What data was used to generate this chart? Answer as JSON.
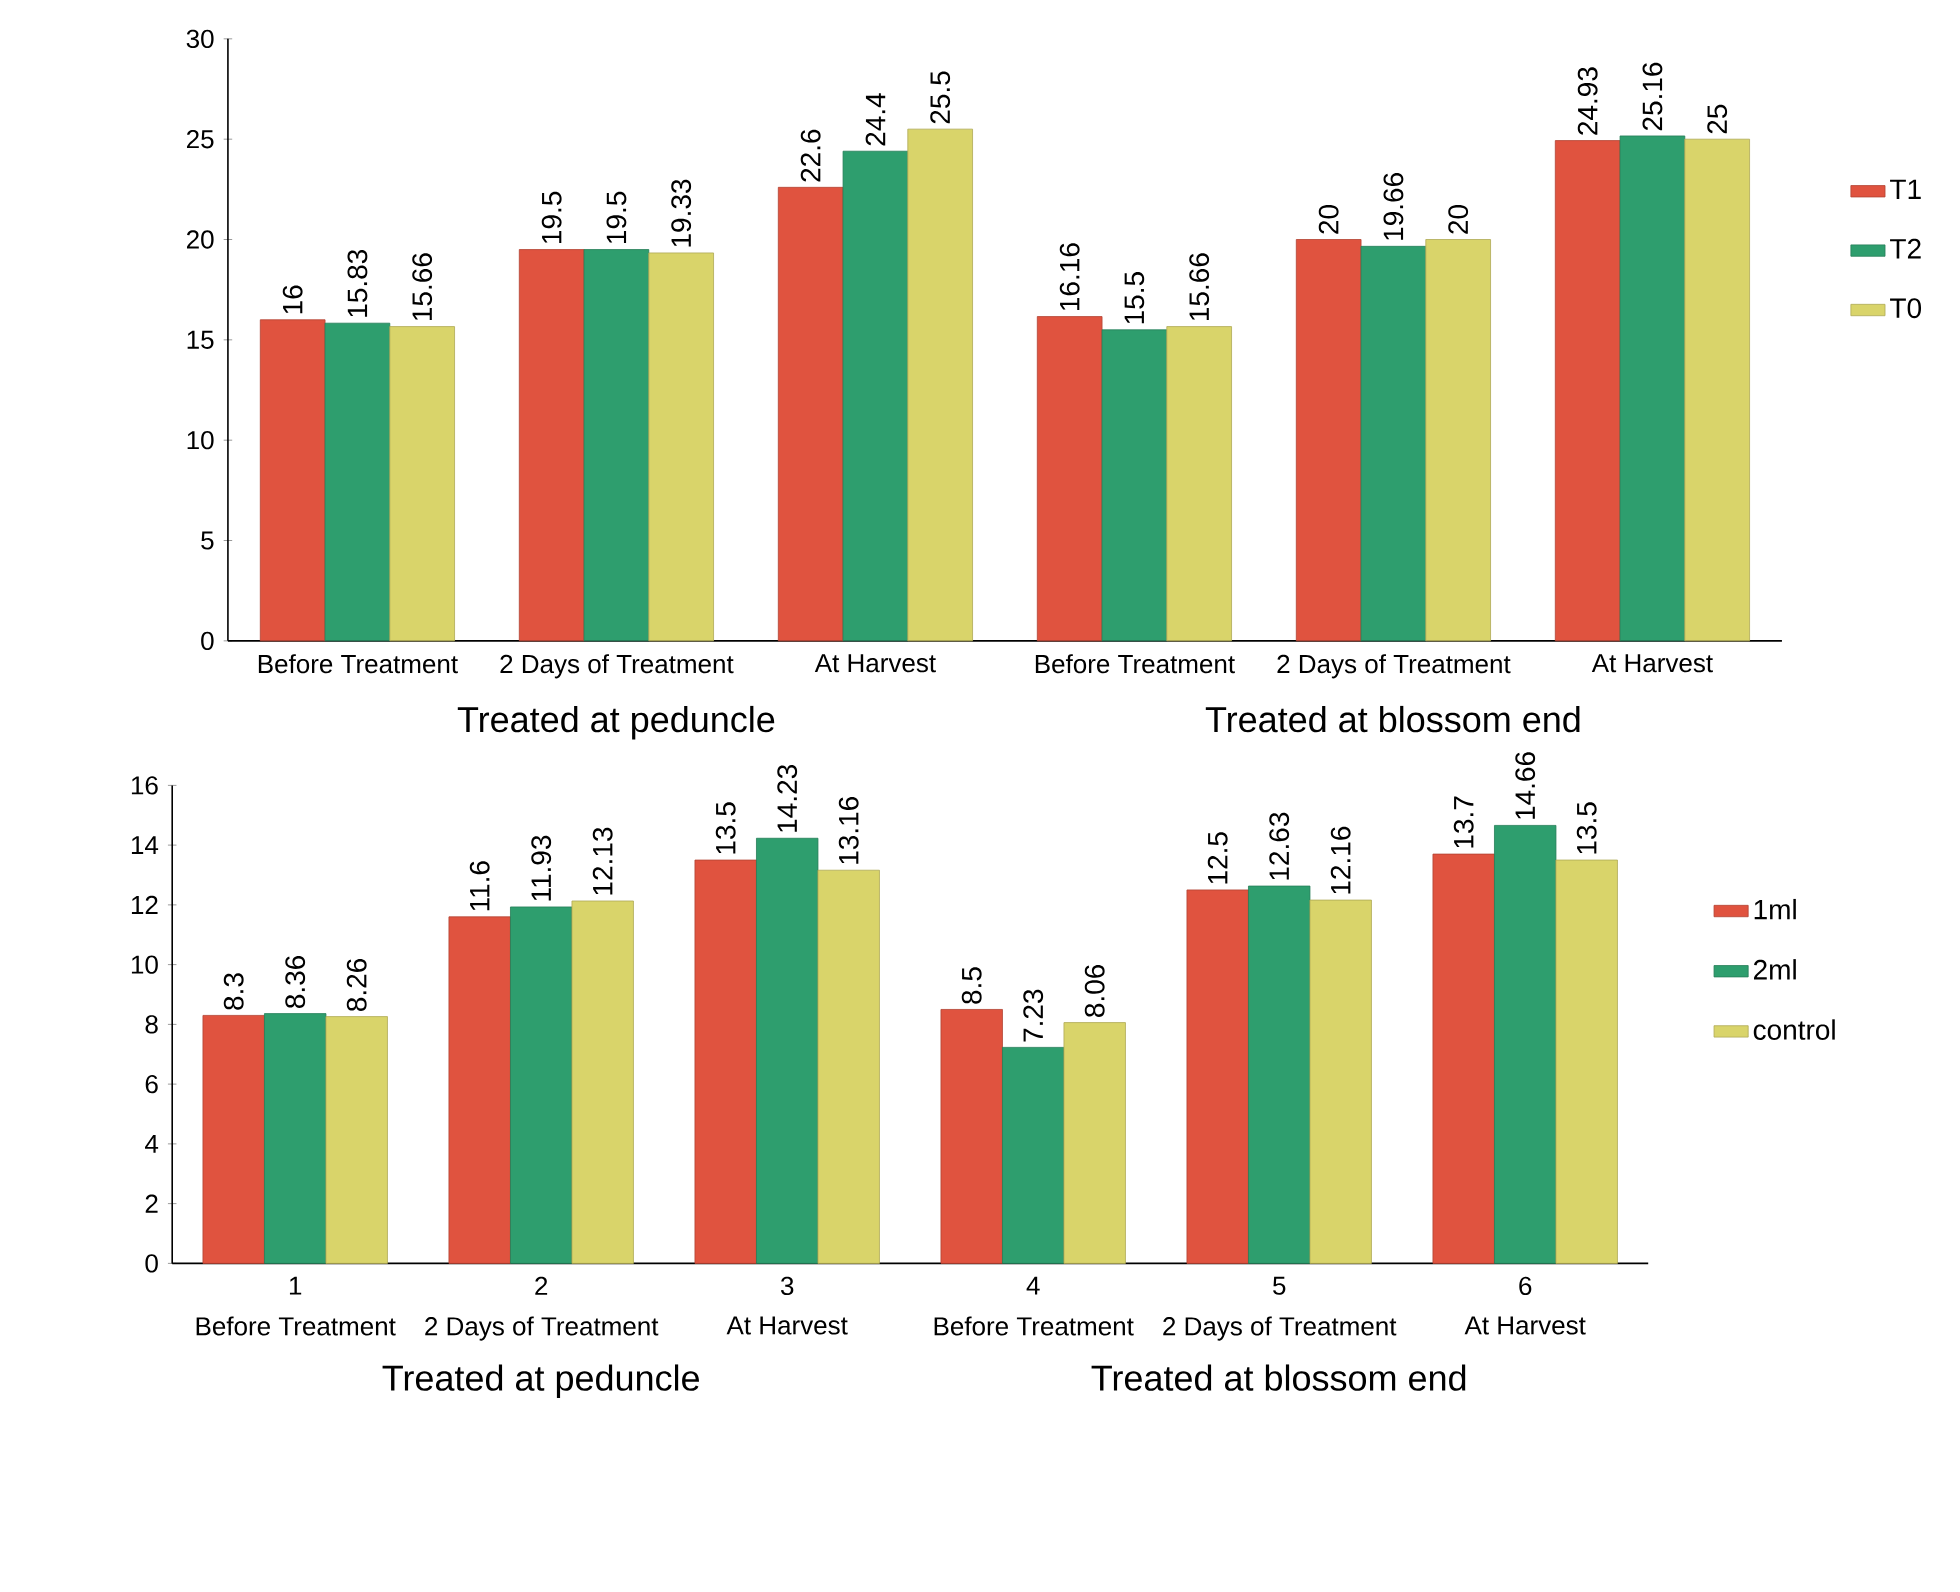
{
  "chart_data": [
    {
      "type": "bar",
      "categories": [
        "Before Treatment",
        "2 Days of Treatment",
        "At Harvest",
        "Before Treatment",
        "2 Days of Treatment",
        "At Harvest"
      ],
      "ylim": [
        0,
        30
      ],
      "yticks": [
        0,
        5,
        10,
        15,
        20,
        25,
        30
      ],
      "legend": "right",
      "annotations": [
        "Treated at peduncle",
        "Treated at blossom end"
      ],
      "series": [
        {
          "name": "T1",
          "color": "#e0533f",
          "values": [
            16,
            19.5,
            22.6,
            16.16,
            20,
            24.93
          ],
          "value_labels": [
            "16",
            "19.5",
            "22.6",
            "16.16",
            "20",
            "24.93"
          ]
        },
        {
          "name": "T2",
          "color": "#2e9e6e",
          "values": [
            15.83,
            19.5,
            24.4,
            15.5,
            19.66,
            25.16
          ],
          "value_labels": [
            "15.83",
            "19.5",
            "24.4",
            "15.5",
            "19.66",
            "25.16"
          ]
        },
        {
          "name": "T0",
          "color": "#d9d46a",
          "values": [
            15.66,
            19.33,
            25.5,
            15.66,
            20,
            25
          ],
          "value_labels": [
            "15.66",
            "19.33",
            "25.5",
            "15.66",
            "20",
            "25"
          ]
        }
      ]
    },
    {
      "type": "bar",
      "x": [
        1,
        2,
        3,
        4,
        5,
        6
      ],
      "xlim": [
        0.5,
        6.5
      ],
      "xticks": [
        1,
        2,
        3,
        4,
        5,
        6
      ],
      "ylim": [
        0,
        16
      ],
      "yticks": [
        0,
        2,
        4,
        6,
        8,
        10,
        12,
        14,
        16
      ],
      "legend": "right",
      "annotations": [
        "Before Treatment",
        "2 Days of Treatment",
        "At Harvest",
        "Before Treatment",
        "2 Days of Treatment",
        "At Harvest",
        "Treated at peduncle",
        "Treated at blossom end"
      ],
      "series": [
        {
          "name": "1ml",
          "color": "#e0533f",
          "values": [
            8.3,
            11.6,
            13.5,
            8.5,
            12.5,
            13.7
          ],
          "value_labels": [
            "8.3",
            "11.6",
            "13.5",
            "8.5",
            "12.5",
            "13.7"
          ]
        },
        {
          "name": "2ml",
          "color": "#2e9e6e",
          "values": [
            8.36,
            11.93,
            14.23,
            7.23,
            12.63,
            14.66
          ],
          "value_labels": [
            "8.36",
            "11.93",
            "14.23",
            "7.23",
            "12.63",
            "14.66"
          ]
        },
        {
          "name": "control",
          "color": "#d9d46a",
          "values": [
            8.26,
            12.13,
            13.16,
            8.06,
            12.16,
            13.5
          ],
          "value_labels": [
            "8.26",
            "12.13",
            "13.16",
            "8.06",
            "12.16",
            "13.5"
          ]
        }
      ]
    }
  ]
}
